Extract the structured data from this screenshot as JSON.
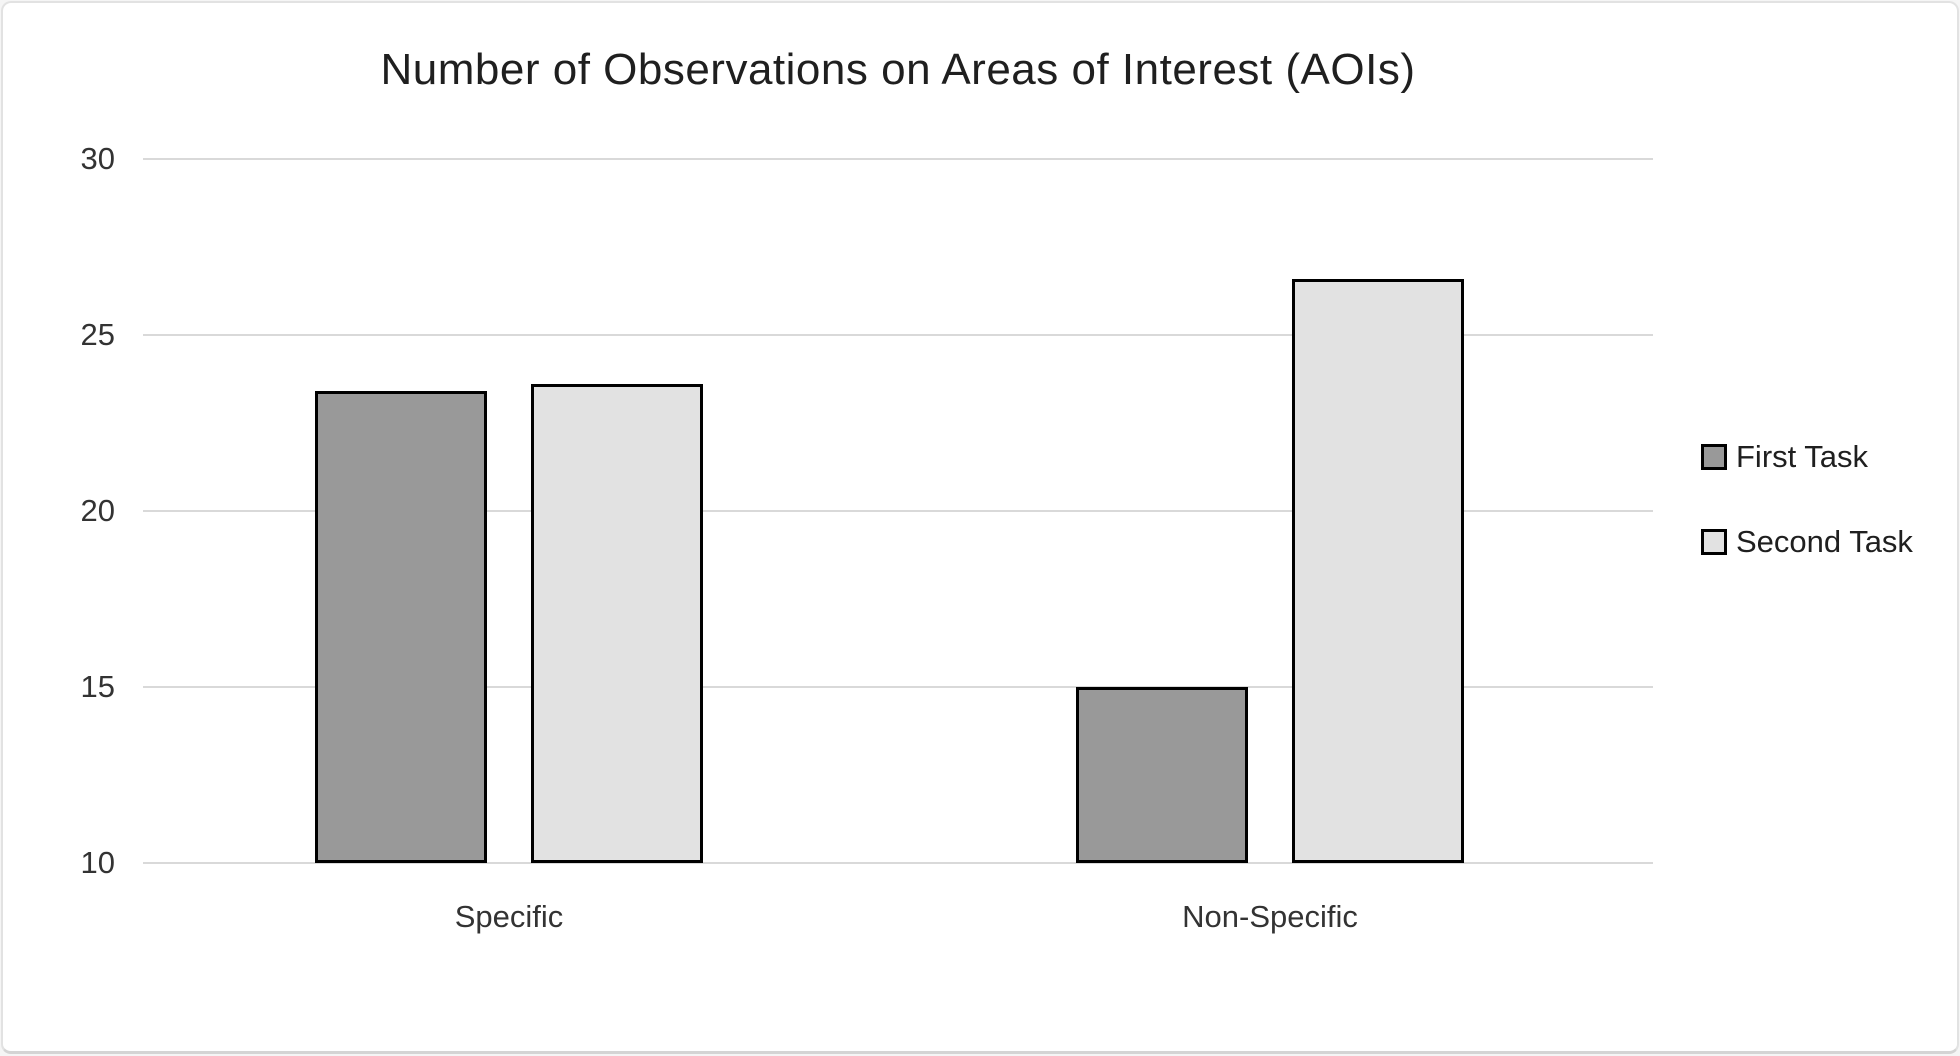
{
  "card": {
    "background": "#ffffff",
    "border_color": "#e2e2e2"
  },
  "chart_data": {
    "type": "bar",
    "title": "Number of Observations on Areas of Interest (AOIs)",
    "categories": [
      "Specific",
      "Non-Specific"
    ],
    "series": [
      {
        "name": "First Task",
        "color": "#999999",
        "values": [
          23.4,
          15.0
        ]
      },
      {
        "name": "Second Task",
        "color": "#e2e2e2",
        "values": [
          23.6,
          26.6
        ]
      }
    ],
    "xlabel": "",
    "ylabel": "",
    "ylim": [
      10,
      30
    ],
    "yticks": [
      10,
      15,
      20,
      25,
      30
    ],
    "grid": true,
    "legend_position": "right",
    "legend_labels": [
      "First Task",
      "Second Task"
    ],
    "bar_border_color": "#000000",
    "gridline_color": "#d9d9d9",
    "tick_label_color": "#333333",
    "title_color": "#1f1f1f"
  }
}
